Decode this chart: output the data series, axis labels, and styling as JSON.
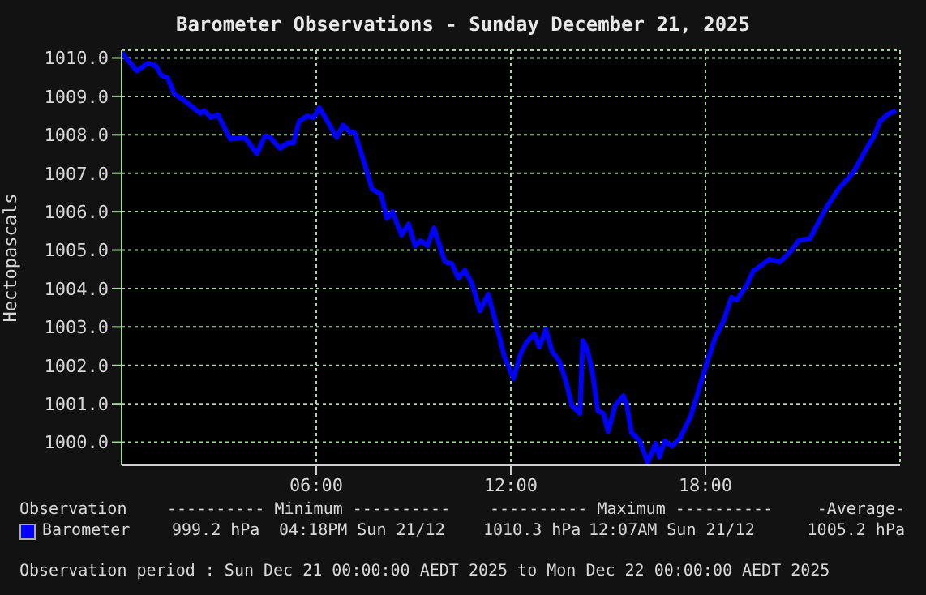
{
  "chart_data": {
    "type": "line",
    "title": "Barometer Observations - Sunday December 21, 2025",
    "ylabel": "Hectopascals",
    "xlim": [
      0,
      24
    ],
    "xticks": [
      {
        "value": 6,
        "label": "06:00"
      },
      {
        "value": 12,
        "label": "12:00"
      },
      {
        "value": 18,
        "label": "18:00"
      }
    ],
    "ylim": [
      999.4,
      1010.2
    ],
    "yticks": [
      {
        "value": 1000,
        "label": "1000.0"
      },
      {
        "value": 1001,
        "label": "1001.0"
      },
      {
        "value": 1002,
        "label": "1002.0"
      },
      {
        "value": 1003,
        "label": "1003.0"
      },
      {
        "value": 1004,
        "label": "1004.0"
      },
      {
        "value": 1005,
        "label": "1005.0"
      },
      {
        "value": 1006,
        "label": "1006.0"
      },
      {
        "value": 1007,
        "label": "1007.0"
      },
      {
        "value": 1008,
        "label": "1008.0"
      },
      {
        "value": 1009,
        "label": "1009.0"
      },
      {
        "value": 1010,
        "label": "1010.0"
      }
    ],
    "x": [
      0,
      0.47,
      0.8,
      1.05,
      1.22,
      1.42,
      1.63,
      1.97,
      2.42,
      2.55,
      2.75,
      2.97,
      3.35,
      3.8,
      4.17,
      4.42,
      4.58,
      4.88,
      5.13,
      5.3,
      5.47,
      5.72,
      5.92,
      6.1,
      6.3,
      6.63,
      6.83,
      7.05,
      7.18,
      7.42,
      7.72,
      8.0,
      8.18,
      8.35,
      8.63,
      8.85,
      9.05,
      9.22,
      9.43,
      9.63,
      9.97,
      10.18,
      10.38,
      10.58,
      10.8,
      11.05,
      11.3,
      11.55,
      11.8,
      12.08,
      12.3,
      12.47,
      12.72,
      12.88,
      13.08,
      13.27,
      13.5,
      13.72,
      13.88,
      14.13,
      14.22,
      14.35,
      14.52,
      14.68,
      14.85,
      15.0,
      15.22,
      15.47,
      15.58,
      15.72,
      15.97,
      16.22,
      16.47,
      16.58,
      16.75,
      16.97,
      17.22,
      17.55,
      17.8,
      18.05,
      18.3,
      18.55,
      18.8,
      18.97,
      19.3,
      19.47,
      19.97,
      20.3,
      20.63,
      20.88,
      21.22,
      21.72,
      22.13,
      22.55,
      22.97,
      23.18,
      23.38,
      23.63,
      23.88
    ],
    "series": [
      {
        "name": "Barometer",
        "color": "#0000ff",
        "values": [
          1010.15,
          1009.66,
          1009.86,
          1009.8,
          1009.55,
          1009.48,
          1009.06,
          1008.87,
          1008.56,
          1008.63,
          1008.45,
          1008.52,
          1007.89,
          1007.93,
          1007.51,
          1007.97,
          1007.93,
          1007.65,
          1007.79,
          1007.79,
          1008.35,
          1008.49,
          1008.45,
          1008.7,
          1008.42,
          1007.93,
          1008.25,
          1008.07,
          1008.07,
          1007.44,
          1006.59,
          1006.45,
          1005.82,
          1006.0,
          1005.39,
          1005.68,
          1005.11,
          1005.25,
          1005.11,
          1005.58,
          1004.69,
          1004.65,
          1004.27,
          1004.48,
          1004.13,
          1003.42,
          1003.85,
          1003.07,
          1002.23,
          1001.66,
          1002.3,
          1002.58,
          1002.82,
          1002.48,
          1002.93,
          1002.37,
          1002.11,
          1001.52,
          1000.96,
          1000.75,
          1002.65,
          1002.44,
          1001.8,
          1000.82,
          1000.75,
          1000.28,
          1000.96,
          1001.21,
          1000.96,
          1000.25,
          1000.04,
          999.48,
          999.97,
          999.62,
          1000.04,
          999.9,
          1000.11,
          1000.68,
          1001.38,
          1002.08,
          1002.72,
          1003.14,
          1003.77,
          1003.7,
          1004.13,
          1004.45,
          1004.76,
          1004.69,
          1004.97,
          1005.25,
          1005.3,
          1006.1,
          1006.62,
          1007.01,
          1007.65,
          1007.93,
          1008.35,
          1008.54,
          1008.63
        ]
      }
    ],
    "grid": true,
    "legend": "bottom",
    "marker": "none",
    "line_style": "solid",
    "annotations": [
      "Observation",
      "---------- Minimum ----------",
      "---------- Maximum ----------",
      "-Average-",
      "999.2 hPa",
      "04:18PM Sun 21/12",
      "1010.3 hPa",
      "12:07AM Sun 21/12",
      "1005.2 hPa",
      "Observation period : Sun Dec 21 00:00:00 AEDT 2025 to Mon Dec 22 00:00:00 AEDT 2025"
    ]
  }
}
